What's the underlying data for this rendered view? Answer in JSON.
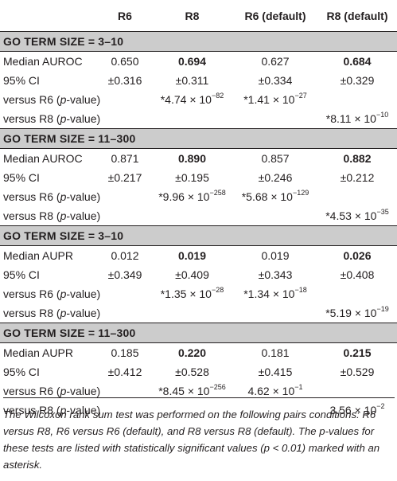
{
  "columns": [
    "",
    "R6",
    "R8",
    "R6 (default)",
    "R8 (default)"
  ],
  "sections": [
    {
      "title": "GO TERM SIZE = 3–10",
      "rows": [
        {
          "label": "Median AUROC",
          "cells": [
            "0.650",
            "0.694",
            "0.627",
            "0.684"
          ],
          "bold": [
            false,
            true,
            false,
            true
          ]
        },
        {
          "label": "95% CI",
          "cells": [
            "±0.316",
            "±0.311",
            "±0.334",
            "±0.329"
          ],
          "bold": [
            false,
            false,
            false,
            false
          ]
        },
        {
          "label_pre": "versus R6 (",
          "label_italic": "p",
          "label_post": "-value)",
          "cells": [
            null,
            {
              "pre": "*4.74 × 10",
              "exp": "−82"
            },
            {
              "pre": "*1.41 × 10",
              "exp": "−27"
            },
            null
          ]
        },
        {
          "label_pre": "versus R8 (",
          "label_italic": "p",
          "label_post": "-value)",
          "cells": [
            null,
            null,
            null,
            {
              "pre": "*8.11 × 10",
              "exp": "−10"
            }
          ]
        }
      ]
    },
    {
      "title": "GO TERM SIZE = 11–300",
      "rows": [
        {
          "label": "Median AUROC",
          "cells": [
            "0.871",
            "0.890",
            "0.857",
            "0.882"
          ],
          "bold": [
            false,
            true,
            false,
            true
          ]
        },
        {
          "label": "95% CI",
          "cells": [
            "±0.217",
            "±0.195",
            "±0.246",
            "±0.212"
          ],
          "bold": [
            false,
            false,
            false,
            false
          ]
        },
        {
          "label_pre": "versus R6 (",
          "label_italic": "p",
          "label_post": "-value)",
          "cells": [
            null,
            {
              "pre": "*9.96 × 10",
              "exp": "−258"
            },
            {
              "pre": "*5.68 × 10",
              "exp": "−129"
            },
            null
          ]
        },
        {
          "label_pre": "versus R8 (",
          "label_italic": "p",
          "label_post": "-value)",
          "cells": [
            null,
            null,
            null,
            {
              "pre": "*4.53 × 10",
              "exp": "−35"
            }
          ]
        }
      ]
    },
    {
      "title": "GO TERM SIZE = 3–10",
      "rows": [
        {
          "label": "Median AUPR",
          "cells": [
            "0.012",
            "0.019",
            "0.019",
            "0.026"
          ],
          "bold": [
            false,
            true,
            false,
            true
          ]
        },
        {
          "label": "95% CI",
          "cells": [
            "±0.349",
            "±0.409",
            "±0.343",
            "±0.408"
          ],
          "bold": [
            false,
            false,
            false,
            false
          ]
        },
        {
          "label_pre": "versus R6 (",
          "label_italic": "p",
          "label_post": "-value)",
          "cells": [
            null,
            {
              "pre": "*1.35 × 10",
              "exp": "−28"
            },
            {
              "pre": "*1.34 × 10",
              "exp": "−18"
            },
            null
          ]
        },
        {
          "label_pre": "versus R8 (",
          "label_italic": "p",
          "label_post": "-value)",
          "cells": [
            null,
            null,
            null,
            {
              "pre": "*5.19 × 10",
              "exp": "−19"
            }
          ]
        }
      ]
    },
    {
      "title": "GO TERM SIZE = 11–300",
      "rows": [
        {
          "label": "Median AUPR",
          "cells": [
            "0.185",
            "0.220",
            "0.181",
            "0.215"
          ],
          "bold": [
            false,
            true,
            false,
            true
          ]
        },
        {
          "label": "95% CI",
          "cells": [
            "±0.412",
            "±0.528",
            "±0.415",
            "±0.529"
          ],
          "bold": [
            false,
            false,
            false,
            false
          ]
        },
        {
          "label_pre": "versus R6 (",
          "label_italic": "p",
          "label_post": "-value)",
          "cells": [
            null,
            {
              "pre": "*8.45 × 10",
              "exp": "−256"
            },
            {
              "pre": "4.62 × 10",
              "exp": "−1"
            },
            null
          ]
        },
        {
          "label_pre": "versus R8 (",
          "label_italic": "p",
          "label_post": "-value)",
          "cells": [
            null,
            null,
            null,
            {
              "pre": "3.56 × 10",
              "exp": "−2"
            }
          ]
        }
      ]
    }
  ],
  "footnote": "The Wilcoxon rank sum test was performed on the following pairs conditions: R6 versus R8, R6 versus R6 (default), and R8 versus R8 (default). The p-values for these tests are listed with statistically significant values (p < 0.01) marked with an asterisk."
}
